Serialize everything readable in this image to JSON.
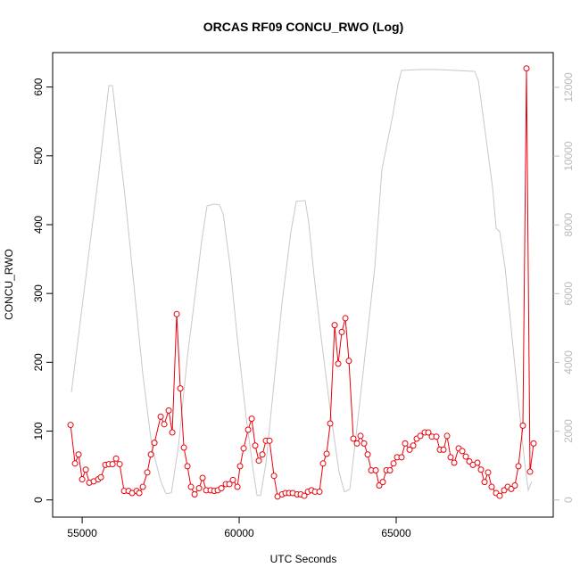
{
  "chart_data": {
    "type": "line",
    "title": "ORCAS RF09 CONCU_RWO (Log)",
    "xlabel": "UTC Seconds",
    "ylabel": "CONCU_RWO",
    "xlim": [
      54060,
      70000
    ],
    "xticks": [
      55000,
      60000,
      65000
    ],
    "ylim": [
      -25,
      650
    ],
    "yticks": [
      0,
      100,
      200,
      300,
      400,
      500,
      600
    ],
    "y2lim": [
      -500,
      13010
    ],
    "y2ticks": [
      0,
      2000,
      4000,
      6000,
      8000,
      10000,
      12000
    ],
    "y2color": "#bbbbbb",
    "series": [
      {
        "color": "#e8000b",
        "markers": true,
        "x": [
          54631,
          54773,
          54886,
          55000,
          55114,
          55227,
          55369,
          55511,
          55597,
          55739,
          55852,
          55966,
          56080,
          56193,
          56335,
          56477,
          56591,
          56733,
          56818,
          56932,
          57074,
          57188,
          57301,
          57500,
          57614,
          57756,
          57869,
          58011,
          58125,
          58239,
          58352,
          58466,
          58580,
          58722,
          58835,
          58949,
          59091,
          59205,
          59318,
          59432,
          59574,
          59688,
          59801,
          59943,
          60028,
          60142,
          60284,
          60398,
          60511,
          60625,
          60739,
          60852,
          60966,
          61108,
          61222,
          61364,
          61477,
          61591,
          61705,
          61847,
          61960,
          62074,
          62188,
          62301,
          62415,
          62557,
          62670,
          62784,
          62898,
          63040,
          63153,
          63267,
          63381,
          63494,
          63636,
          63750,
          63864,
          63977,
          64091,
          64205,
          64347,
          64460,
          64574,
          64688,
          64801,
          64915,
          65028,
          65170,
          65284,
          65426,
          65540,
          65653,
          65767,
          65909,
          66023,
          66136,
          66278,
          66392,
          66506,
          66619,
          66733,
          66847,
          66989,
          67102,
          67216,
          67330,
          67443,
          67585,
          67699,
          67813,
          67926,
          68040,
          68182,
          68295,
          68438,
          68551,
          68665,
          68778,
          68892,
          69034,
          69148,
          69261,
          69375
        ],
        "values": [
          109,
          53,
          66,
          30,
          44,
          25,
          27,
          30,
          33,
          51,
          52,
          52,
          60,
          52,
          13,
          13,
          10,
          13,
          10,
          19,
          40,
          66,
          83,
          121,
          110,
          130,
          98,
          270,
          162,
          76,
          49,
          19,
          8,
          17,
          32,
          14,
          14,
          13,
          14,
          17,
          23,
          23,
          29,
          19,
          49,
          75,
          102,
          118,
          79,
          57,
          66,
          86,
          86,
          35,
          5,
          8,
          10,
          10,
          10,
          8,
          8,
          6,
          12,
          14,
          12,
          12,
          53,
          67,
          111,
          254,
          198,
          244,
          264,
          202,
          89,
          82,
          93,
          82,
          66,
          43,
          43,
          21,
          26,
          43,
          43,
          53,
          62,
          62,
          82,
          73,
          79,
          89,
          93,
          98,
          98,
          92,
          92,
          73,
          73,
          93,
          62,
          54,
          75,
          71,
          63,
          56,
          51,
          54,
          44,
          26,
          40,
          19,
          10,
          6,
          14,
          19,
          16,
          21,
          49,
          108,
          627,
          41,
          82
        ]
      },
      {
        "color": "#c8c8c8",
        "axis": "y2",
        "markers": false,
        "x": [
          54659,
          54943,
          55227,
          55511,
          55739,
          55852,
          55966,
          56136,
          56364,
          56648,
          56932,
          57216,
          57500,
          57670,
          57841,
          58068,
          58352,
          58636,
          58807,
          58977,
          59205,
          59375,
          59489,
          59716,
          59943,
          60227,
          60455,
          60568,
          60682,
          60852,
          61080,
          61364,
          61648,
          61818,
          62102,
          62216,
          62386,
          62614,
          62898,
          63182,
          63352,
          63523,
          63750,
          64034,
          64318,
          64545,
          64716,
          64886,
          65057,
          65170,
          65739,
          66307,
          66875,
          67443,
          67500,
          67614,
          67841,
          68068,
          68182,
          68295,
          68466,
          68693,
          68920,
          69091,
          69205,
          69318
        ],
        "values": [
          3136,
          5210,
          7283,
          9356,
          11171,
          12052,
          12052,
          10652,
          8838,
          6246,
          3654,
          1581,
          544,
          181,
          207,
          1581,
          4173,
          6246,
          7542,
          8553,
          8605,
          8579,
          8320,
          6765,
          4691,
          2359,
          803,
          130,
          130,
          1063,
          3136,
          5728,
          7801,
          8683,
          8709,
          8061,
          6505,
          4691,
          2618,
          803,
          233,
          311,
          2099,
          4432,
          6765,
          9616,
          10393,
          11171,
          12078,
          12492,
          12518,
          12518,
          12492,
          12466,
          12466,
          12207,
          10652,
          9097,
          7905,
          7801,
          6765,
          4691,
          2618,
          1063,
          285,
          544
        ]
      }
    ]
  }
}
